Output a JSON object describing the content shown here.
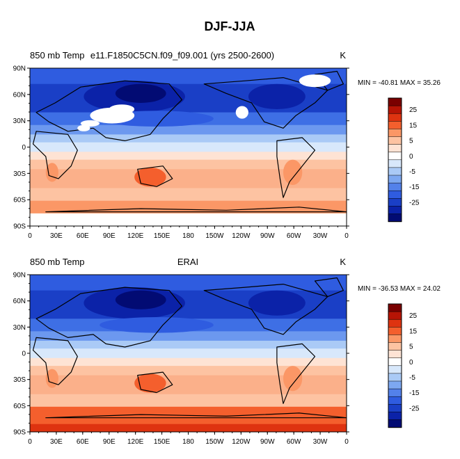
{
  "title": "DJF-JJA",
  "colors": {
    "ocean_cold": "#1a3fc6",
    "land_mask": "#ffffff",
    "coast": "#000000"
  },
  "colorbar": {
    "labels": [
      "25",
      "15",
      "5",
      "0",
      "-5",
      "-15",
      "-25"
    ],
    "colors": [
      "#7a0000",
      "#b71405",
      "#de3310",
      "#f45f2d",
      "#fb9766",
      "#fdc3a2",
      "#fee3d4",
      "#ffffff",
      "#d8e8fb",
      "#aacaf6",
      "#7da8f1",
      "#5381ea",
      "#2f5ce0",
      "#1a3fc6",
      "#0b22a8",
      "#020b73"
    ]
  },
  "panels": [
    {
      "id": "model",
      "left_title": "850 mb Temp",
      "center_title": "e11.F1850C5CN.f09_f09.001 (yrs 2500-2600)",
      "units": "K",
      "minmax": "MIN = -40.81 MAX =  35.26",
      "lat_labels": [
        "90N",
        "60N",
        "30N",
        "0",
        "30S",
        "60S",
        "90S"
      ],
      "lon_labels": [
        "0",
        "30E",
        "60E",
        "90E",
        "120E",
        "150E",
        "180",
        "150W",
        "120W",
        "90W",
        "60W",
        "30W",
        "0"
      ],
      "has_masked_land": true
    },
    {
      "id": "erai",
      "left_title": "850 mb Temp",
      "center_title": "ERAI",
      "units": "K",
      "minmax": "MIN = -36.53 MAX =  24.02",
      "lat_labels": [
        "90N",
        "60N",
        "30N",
        "0",
        "30S",
        "60S",
        "90S"
      ],
      "lon_labels": [
        "0",
        "30E",
        "60E",
        "90E",
        "120E",
        "150E",
        "180",
        "150W",
        "120W",
        "90W",
        "60W",
        "30W",
        "0"
      ],
      "has_masked_land": false
    }
  ]
}
